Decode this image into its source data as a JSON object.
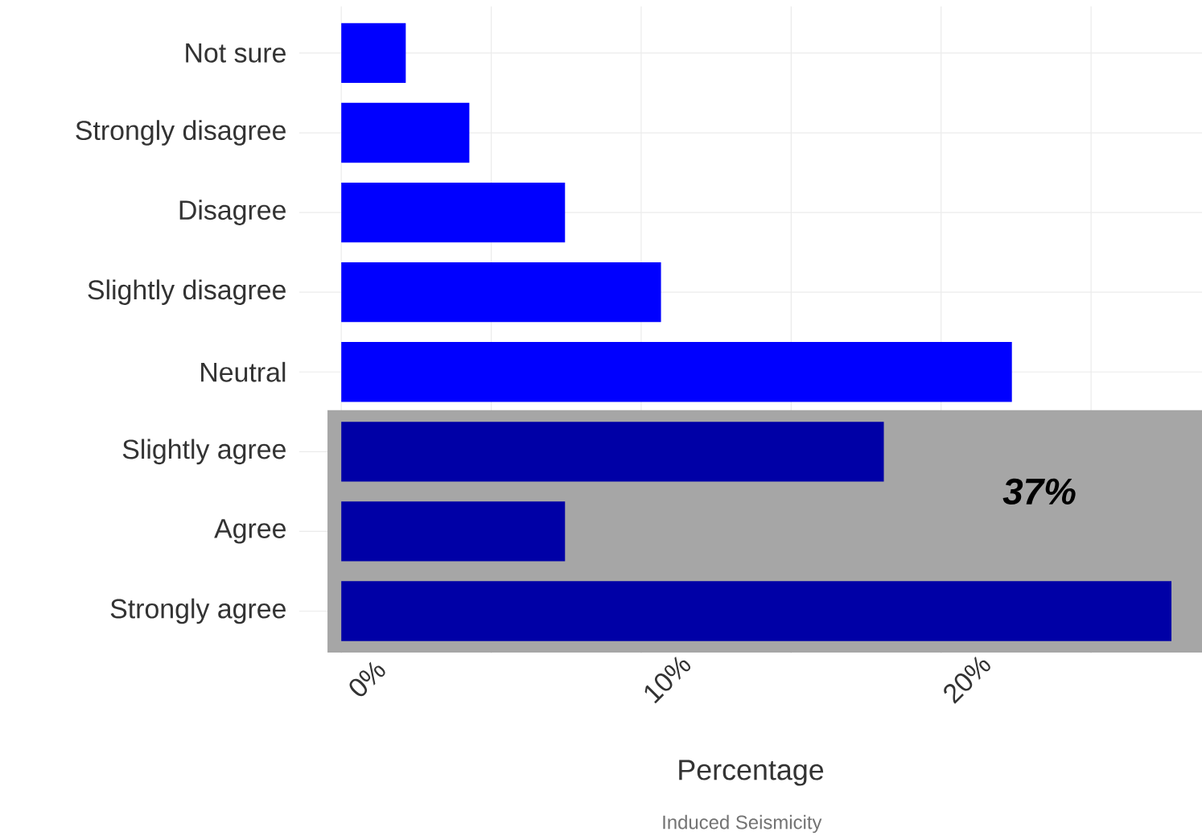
{
  "chart_data": {
    "type": "bar",
    "orientation": "horizontal",
    "categories": [
      "Not sure",
      "Strongly disagree",
      "Disagree",
      "Slightly disagree",
      "Neutral",
      "Slightly agree",
      "Agree",
      "Strongly agree"
    ],
    "values": [
      2.15,
      4.27,
      7.46,
      10.66,
      22.36,
      18.09,
      7.46,
      27.68
    ],
    "colors": [
      "#0000ff",
      "#0000ff",
      "#0000ff",
      "#0000ff",
      "#0000ff",
      "#0000a6",
      "#0000a6",
      "#0000a6"
    ],
    "xlim": [
      -1.4,
      28.7
    ],
    "xticks": [
      {
        "value": 0,
        "label": "0%"
      },
      {
        "value": 5,
        "label": null
      },
      {
        "value": 10,
        "label": "10%"
      },
      {
        "value": 15,
        "label": null
      },
      {
        "value": 20,
        "label": "20%"
      },
      {
        "value": 25,
        "label": null
      }
    ],
    "xlabel": "Percentage",
    "bands": [
      {
        "axis": "y",
        "from": "Slightly agree",
        "to": "Strongly agree",
        "color": "#a6a6a6"
      }
    ],
    "annotations": [
      "37%",
      "Induced Seismicity"
    ],
    "grid": true
  }
}
